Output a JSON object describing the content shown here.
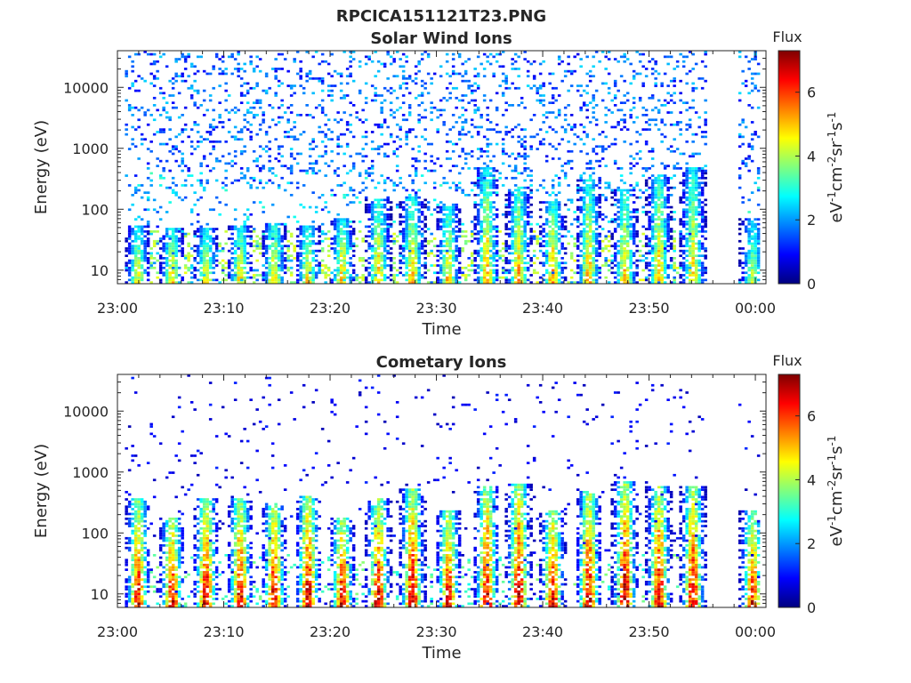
{
  "figure_title": "RPCICA151121T23.PNG",
  "colorbar_title": "Flux",
  "colorbar_label": "eV-1cm-2sr-1s-1",
  "colormap": [
    "#00007f",
    "#0000ff",
    "#007fff",
    "#00ffff",
    "#7fff7f",
    "#ffff00",
    "#ff7f00",
    "#ff0000",
    "#7f0000"
  ],
  "chart_data": [
    {
      "type": "heatmap",
      "title": "Solar Wind Ions",
      "xlabel": "Time",
      "ylabel": "Energy (eV)",
      "x_ticks": [
        "23:00",
        "23:10",
        "23:20",
        "23:30",
        "23:40",
        "23:50",
        "00:00"
      ],
      "xlim_minutes": [
        0,
        61
      ],
      "y_scale": "log",
      "y_ticks": [
        "10",
        "100",
        "1000",
        "10000"
      ],
      "ylim": [
        6,
        40000
      ],
      "colorbar": {
        "label": "Flux",
        "range": [
          0,
          7.3
        ],
        "ticks": [
          "0",
          "2",
          "4",
          "6"
        ]
      },
      "pulse_period_minutes": 3.2,
      "pulse_count": 17,
      "data_gap_minutes": [
        55.2,
        58.2
      ],
      "bursts": [
        {
          "minute": 1.8,
          "peak_flux": 4.6,
          "max_energy": 45
        },
        {
          "minute": 5.0,
          "peak_flux": 5.0,
          "max_energy": 40
        },
        {
          "minute": 8.2,
          "peak_flux": 4.9,
          "max_energy": 40
        },
        {
          "minute": 11.4,
          "peak_flux": 5.0,
          "max_energy": 45
        },
        {
          "minute": 14.6,
          "peak_flux": 5.1,
          "max_energy": 50
        },
        {
          "minute": 17.8,
          "peak_flux": 4.9,
          "max_energy": 45
        },
        {
          "minute": 21.0,
          "peak_flux": 5.2,
          "max_energy": 60
        },
        {
          "minute": 24.4,
          "peak_flux": 5.2,
          "max_energy": 120
        },
        {
          "minute": 27.6,
          "peak_flux": 5.3,
          "max_energy": 140
        },
        {
          "minute": 31.0,
          "peak_flux": 5.0,
          "max_energy": 100
        },
        {
          "minute": 34.6,
          "peak_flux": 5.3,
          "max_energy": 400
        },
        {
          "minute": 37.6,
          "peak_flux": 5.3,
          "max_energy": 200
        },
        {
          "minute": 40.8,
          "peak_flux": 5.4,
          "max_energy": 120
        },
        {
          "minute": 44.2,
          "peak_flux": 5.2,
          "max_energy": 250
        },
        {
          "minute": 47.6,
          "peak_flux": 5.1,
          "max_energy": 180
        },
        {
          "minute": 50.8,
          "peak_flux": 5.2,
          "max_energy": 300
        },
        {
          "minute": 54.0,
          "peak_flux": 5.0,
          "max_energy": 400
        },
        {
          "minute": 59.6,
          "peak_flux": 4.2,
          "max_energy": 60
        }
      ],
      "background_flux": 2.5
    },
    {
      "type": "heatmap",
      "title": "Cometary Ions",
      "xlabel": "Time",
      "ylabel": "Energy (eV)",
      "x_ticks": [
        "23:00",
        "23:10",
        "23:20",
        "23:30",
        "23:40",
        "23:50",
        "00:00"
      ],
      "xlim_minutes": [
        0,
        61
      ],
      "y_scale": "log",
      "y_ticks": [
        "10",
        "100",
        "1000",
        "10000"
      ],
      "ylim": [
        6,
        40000
      ],
      "colorbar": {
        "label": "Flux",
        "range": [
          0,
          7.3
        ],
        "ticks": [
          "0",
          "2",
          "4",
          "6"
        ]
      },
      "pulse_period_minutes": 3.2,
      "pulse_count": 17,
      "data_gap_minutes": [
        55.2,
        58.2
      ],
      "bursts": [
        {
          "minute": 1.8,
          "peak_flux": 6.6,
          "max_energy": 300
        },
        {
          "minute": 5.0,
          "peak_flux": 6.8,
          "max_energy": 150
        },
        {
          "minute": 8.2,
          "peak_flux": 6.8,
          "max_energy": 300
        },
        {
          "minute": 11.4,
          "peak_flux": 6.7,
          "max_energy": 300
        },
        {
          "minute": 14.6,
          "peak_flux": 6.9,
          "max_energy": 250
        },
        {
          "minute": 17.8,
          "peak_flux": 7.0,
          "max_energy": 350
        },
        {
          "minute": 21.0,
          "peak_flux": 6.8,
          "max_energy": 150
        },
        {
          "minute": 24.4,
          "peak_flux": 6.9,
          "max_energy": 300
        },
        {
          "minute": 27.6,
          "peak_flux": 7.0,
          "max_energy": 450
        },
        {
          "minute": 31.0,
          "peak_flux": 6.8,
          "max_energy": 200
        },
        {
          "minute": 34.6,
          "peak_flux": 6.9,
          "max_energy": 500
        },
        {
          "minute": 37.6,
          "peak_flux": 7.1,
          "max_energy": 550
        },
        {
          "minute": 40.8,
          "peak_flux": 6.9,
          "max_energy": 200
        },
        {
          "minute": 44.2,
          "peak_flux": 7.0,
          "max_energy": 400
        },
        {
          "minute": 47.6,
          "peak_flux": 7.1,
          "max_energy": 600
        },
        {
          "minute": 50.8,
          "peak_flux": 7.0,
          "max_energy": 500
        },
        {
          "minute": 54.0,
          "peak_flux": 6.9,
          "max_energy": 500
        },
        {
          "minute": 59.6,
          "peak_flux": 6.4,
          "max_energy": 200
        }
      ],
      "background_flux": 1.2
    }
  ]
}
